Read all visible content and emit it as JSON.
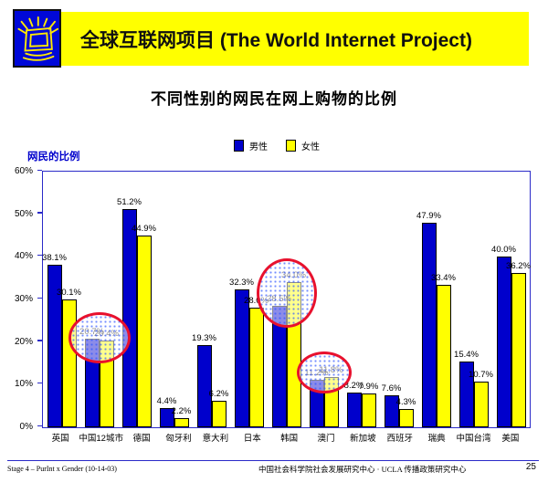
{
  "header": {
    "banner_title": "全球互联网项目 (The World Internet Project)",
    "logo": "shining-monitor-logo",
    "banner_color": "#ffff00",
    "logo_color": "#0008d8"
  },
  "slide": {
    "title": "不同性别的网民在网上购物的比例",
    "page_number": "25"
  },
  "chart_data": {
    "type": "bar",
    "title": "不同性别的网民在网上购物的比例",
    "axis_label": "网民的比例",
    "categories": [
      "英国",
      "中国12城市",
      "德国",
      "匈牙利",
      "意大利",
      "日本",
      "韩国",
      "澳门",
      "新加坡",
      "西班牙",
      "瑞典",
      "中国台湾",
      "美国"
    ],
    "series": [
      {
        "name": "男性",
        "color": "#0000cc",
        "values": [
          38.1,
          20.7,
          51.2,
          4.4,
          19.3,
          32.3,
          28.5,
          11.2,
          8.2,
          7.6,
          47.9,
          15.4,
          40.0
        ]
      },
      {
        "name": "女性",
        "color": "#ffff00",
        "values": [
          30.1,
          20.4,
          44.9,
          2.2,
          6.2,
          28.0,
          34.0,
          11.8,
          7.9,
          4.3,
          33.4,
          10.7,
          36.2
        ]
      }
    ],
    "ylim": [
      0,
      60
    ],
    "yticks": [
      "0%",
      "10%",
      "20%",
      "30%",
      "40%",
      "50%",
      "60%"
    ],
    "grid": false,
    "legend_position": "top-center",
    "data_label_format": "0.0%",
    "highlighted_categories": [
      "中国12城市",
      "韩国",
      "澳门"
    ],
    "highlight_color": "#e8112d",
    "axis_color": "#2a2ac8"
  },
  "footer": {
    "left": "Stage 4 – PurInt x Gender (10-14-03)",
    "center": "中国社会科学院社会发展研究中心 · UCLA 传播政策研究中心"
  }
}
